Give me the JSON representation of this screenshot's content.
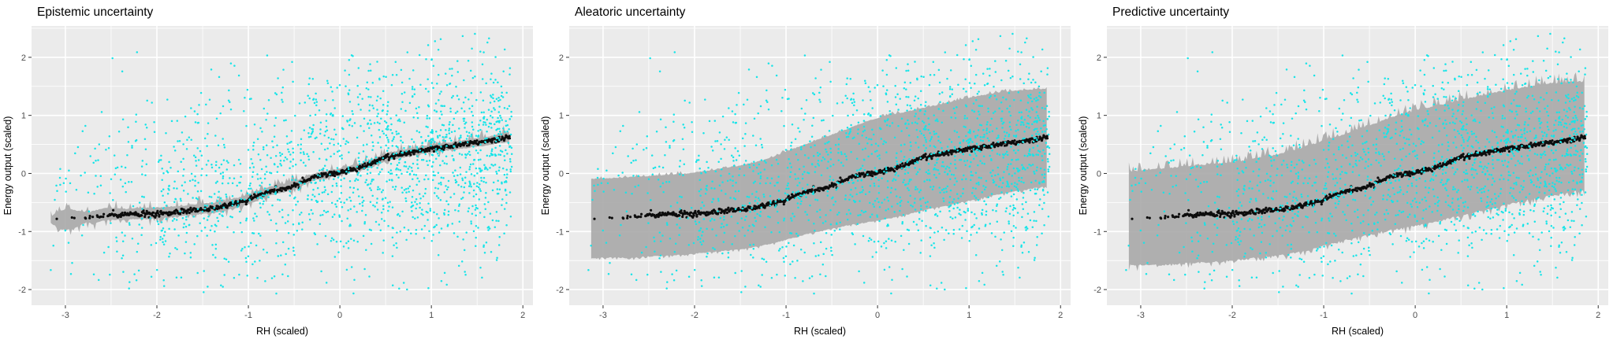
{
  "figure": {
    "background": "#FFFFFF",
    "description": "Three ggplot-style panels comparing uncertainty decompositions of a regression model on power-plant data"
  },
  "chart_data": {
    "type": "scatter",
    "xlabel": "RH (scaled)",
    "ylabel": "Energy output (scaled)",
    "xlim": [
      -3.37,
      2.11
    ],
    "ylim": [
      -2.27,
      2.54
    ],
    "x_ticks": [
      -3,
      -2,
      -1,
      0,
      1,
      2
    ],
    "y_ticks": [
      2,
      1,
      0,
      -1,
      -2
    ],
    "x_minor_ticks": [
      -2.5,
      -1.5,
      -0.5,
      0.5,
      1.5
    ],
    "y_minor_ticks": [
      -1.5,
      -0.5,
      0.5,
      1.5,
      2.5
    ],
    "panel_bg": "#EBEBEB",
    "grid_color": "#FFFFFF",
    "tick_mark_color": "#333333",
    "tick_label_color": "#4D4D4D",
    "legend": "none",
    "scatter": {
      "name": "observations",
      "color": "#17E4E8",
      "point_r": 1.25,
      "n": 1700,
      "seed": 11,
      "x_power": 0.55,
      "x_range": [
        -3.3,
        1.88
      ],
      "y_center_scale": 0.58,
      "y_offset": 0.03,
      "y_sigma": 0.86,
      "y_clip": [
        -2.1,
        2.45
      ]
    },
    "mean_curve": {
      "name": "mean prediction",
      "color": "#0D0D0D",
      "point_r": 1.6,
      "seed": 5,
      "jitter": 0.022,
      "band_start": -2.54,
      "band_end": 1.86,
      "band_step": 0.0072,
      "left_clusters": [
        [
          -3.1,
          1
        ],
        [
          -2.92,
          1
        ],
        [
          -2.89,
          1
        ],
        [
          -2.79,
          2
        ],
        [
          -2.74,
          2
        ],
        [
          -2.7,
          1
        ],
        [
          -2.66,
          2
        ],
        [
          -2.62,
          3
        ],
        [
          -2.58,
          2
        ]
      ],
      "points": [
        [
          -3.12,
          -0.8
        ],
        [
          -2.95,
          -0.76
        ],
        [
          -2.85,
          -0.78
        ],
        [
          -2.72,
          -0.74
        ],
        [
          -2.6,
          -0.73
        ],
        [
          -2.5,
          -0.71
        ],
        [
          -2.4,
          -0.72
        ],
        [
          -2.3,
          -0.7
        ],
        [
          -2.2,
          -0.71
        ],
        [
          -2.1,
          -0.69
        ],
        [
          -2.0,
          -0.7
        ],
        [
          -1.9,
          -0.68
        ],
        [
          -1.8,
          -0.67
        ],
        [
          -1.7,
          -0.65
        ],
        [
          -1.6,
          -0.63
        ],
        [
          -1.5,
          -0.62
        ],
        [
          -1.4,
          -0.6
        ],
        [
          -1.3,
          -0.57
        ],
        [
          -1.2,
          -0.54
        ],
        [
          -1.1,
          -0.5
        ],
        [
          -1.0,
          -0.45
        ],
        [
          -0.9,
          -0.4
        ],
        [
          -0.85,
          -0.36
        ],
        [
          -0.75,
          -0.3
        ],
        [
          -0.65,
          -0.27
        ],
        [
          -0.55,
          -0.24
        ],
        [
          -0.45,
          -0.18
        ],
        [
          -0.35,
          -0.1
        ],
        [
          -0.3,
          -0.06
        ],
        [
          -0.2,
          -0.03
        ],
        [
          -0.1,
          -0.01
        ],
        [
          0.0,
          0.02
        ],
        [
          0.1,
          0.06
        ],
        [
          0.2,
          0.1
        ],
        [
          0.3,
          0.14
        ],
        [
          0.4,
          0.22
        ],
        [
          0.5,
          0.28
        ],
        [
          0.6,
          0.31
        ],
        [
          0.7,
          0.34
        ],
        [
          0.8,
          0.37
        ],
        [
          0.9,
          0.4
        ],
        [
          1.0,
          0.43
        ],
        [
          1.1,
          0.45
        ],
        [
          1.2,
          0.47
        ],
        [
          1.3,
          0.49
        ],
        [
          1.4,
          0.51
        ],
        [
          1.5,
          0.53
        ],
        [
          1.6,
          0.55
        ],
        [
          1.7,
          0.58
        ],
        [
          1.8,
          0.61
        ],
        [
          1.86,
          0.63
        ]
      ]
    },
    "ribbon_color": "#A9A9A9",
    "ribbon_opacity": 0.9,
    "panels": [
      {
        "title": "Epistemic uncertainty",
        "ribbon": {
          "seed": 101,
          "edge_noise": {
            "prob": 0.28,
            "base": 0.018,
            "spike_up": 0.15,
            "spike_down": 0.13
          },
          "points": [
            [
              -3.16,
              -0.84,
              -0.76
            ],
            [
              -3.08,
              -0.93,
              -0.66
            ],
            [
              -3.0,
              -0.97,
              -0.62
            ],
            [
              -2.92,
              -0.94,
              -0.63
            ],
            [
              -2.84,
              -0.89,
              -0.66
            ],
            [
              -2.76,
              -0.82,
              -0.7
            ],
            [
              -2.7,
              -0.88,
              -0.65
            ],
            [
              -2.62,
              -0.81,
              -0.63
            ],
            [
              -2.55,
              -0.8,
              -0.6
            ],
            [
              -2.45,
              -0.79,
              -0.61
            ],
            [
              -2.35,
              -0.8,
              -0.62
            ],
            [
              -2.25,
              -0.78,
              -0.61
            ],
            [
              -2.15,
              -0.78,
              -0.6
            ],
            [
              -2.05,
              -0.77,
              -0.6
            ],
            [
              -1.95,
              -0.76,
              -0.59
            ],
            [
              -1.85,
              -0.75,
              -0.58
            ],
            [
              -1.75,
              -0.73,
              -0.57
            ],
            [
              -1.65,
              -0.71,
              -0.55
            ],
            [
              -1.55,
              -0.7,
              -0.54
            ],
            [
              -1.45,
              -0.68,
              -0.52
            ],
            [
              -1.35,
              -0.66,
              -0.5
            ],
            [
              -1.25,
              -0.62,
              -0.47
            ],
            [
              -1.15,
              -0.59,
              -0.44
            ],
            [
              -1.05,
              -0.55,
              -0.4
            ],
            [
              -0.95,
              -0.49,
              -0.34
            ],
            [
              -0.85,
              -0.42,
              -0.28
            ],
            [
              -0.75,
              -0.36,
              -0.23
            ],
            [
              -0.65,
              -0.33,
              -0.2
            ],
            [
              -0.55,
              -0.29,
              -0.17
            ],
            [
              -0.45,
              -0.23,
              -0.11
            ],
            [
              -0.35,
              -0.15,
              -0.04
            ],
            [
              -0.25,
              -0.1,
              0.0
            ],
            [
              -0.15,
              -0.07,
              0.03
            ],
            [
              -0.05,
              -0.04,
              0.06
            ],
            [
              0.05,
              0.0,
              0.1
            ],
            [
              0.15,
              0.04,
              0.14
            ],
            [
              0.25,
              0.07,
              0.17
            ],
            [
              0.35,
              0.12,
              0.23
            ],
            [
              0.45,
              0.19,
              0.31
            ],
            [
              0.55,
              0.24,
              0.36
            ],
            [
              0.65,
              0.27,
              0.38
            ],
            [
              0.75,
              0.3,
              0.41
            ],
            [
              0.85,
              0.33,
              0.44
            ],
            [
              0.95,
              0.36,
              0.47
            ],
            [
              1.05,
              0.38,
              0.5
            ],
            [
              1.15,
              0.4,
              0.52
            ],
            [
              1.25,
              0.42,
              0.54
            ],
            [
              1.35,
              0.44,
              0.56
            ],
            [
              1.45,
              0.46,
              0.58
            ],
            [
              1.55,
              0.48,
              0.61
            ],
            [
              1.65,
              0.5,
              0.63
            ],
            [
              1.75,
              0.53,
              0.67
            ],
            [
              1.86,
              0.55,
              0.71
            ]
          ]
        }
      },
      {
        "title": "Aleatoric uncertainty",
        "ribbon": {
          "seed": 102,
          "edge_noise": {
            "prob": 0.3,
            "base": 0.015,
            "spike_up": 0.06,
            "spike_down": 0.05
          },
          "points": [
            [
              -3.13,
              -1.45,
              -0.1
            ],
            [
              -2.9,
              -1.44,
              -0.09
            ],
            [
              -2.7,
              -1.45,
              -0.07
            ],
            [
              -2.5,
              -1.42,
              -0.05
            ],
            [
              -2.3,
              -1.41,
              -0.03
            ],
            [
              -2.1,
              -1.39,
              -0.01
            ],
            [
              -1.9,
              -1.36,
              0.03
            ],
            [
              -1.7,
              -1.33,
              0.08
            ],
            [
              -1.5,
              -1.3,
              0.13
            ],
            [
              -1.3,
              -1.25,
              0.2
            ],
            [
              -1.1,
              -1.18,
              0.3
            ],
            [
              -0.9,
              -1.09,
              0.43
            ],
            [
              -0.7,
              -1.01,
              0.55
            ],
            [
              -0.5,
              -0.94,
              0.66
            ],
            [
              -0.3,
              -0.88,
              0.78
            ],
            [
              -0.1,
              -0.83,
              0.9
            ],
            [
              0.1,
              -0.78,
              0.99
            ],
            [
              0.3,
              -0.71,
              1.05
            ],
            [
              0.5,
              -0.63,
              1.12
            ],
            [
              0.7,
              -0.56,
              1.19
            ],
            [
              0.9,
              -0.5,
              1.26
            ],
            [
              1.1,
              -0.43,
              1.33
            ],
            [
              1.3,
              -0.36,
              1.38
            ],
            [
              1.5,
              -0.3,
              1.42
            ],
            [
              1.7,
              -0.25,
              1.44
            ],
            [
              1.86,
              -0.21,
              1.45
            ]
          ]
        }
      },
      {
        "title": "Predictive uncertainty",
        "ribbon": {
          "seed": 103,
          "edge_noise": {
            "prob": 0.38,
            "base": 0.03,
            "spike_up": 0.18,
            "spike_down": 0.12
          },
          "points": [
            [
              -3.13,
              -1.57,
              0.02
            ],
            [
              -2.9,
              -1.56,
              0.05
            ],
            [
              -2.7,
              -1.56,
              0.08
            ],
            [
              -2.5,
              -1.53,
              0.11
            ],
            [
              -2.3,
              -1.52,
              0.14
            ],
            [
              -2.1,
              -1.5,
              0.17
            ],
            [
              -1.9,
              -1.47,
              0.21
            ],
            [
              -1.7,
              -1.43,
              0.26
            ],
            [
              -1.5,
              -1.4,
              0.32
            ],
            [
              -1.3,
              -1.35,
              0.4
            ],
            [
              -1.1,
              -1.28,
              0.5
            ],
            [
              -0.9,
              -1.19,
              0.6
            ],
            [
              -0.7,
              -1.11,
              0.71
            ],
            [
              -0.5,
              -1.04,
              0.82
            ],
            [
              -0.3,
              -0.97,
              0.93
            ],
            [
              -0.1,
              -0.92,
              1.03
            ],
            [
              0.1,
              -0.86,
              1.11
            ],
            [
              0.3,
              -0.79,
              1.18
            ],
            [
              0.5,
              -0.71,
              1.25
            ],
            [
              0.7,
              -0.64,
              1.32
            ],
            [
              0.9,
              -0.57,
              1.39
            ],
            [
              1.1,
              -0.49,
              1.45
            ],
            [
              1.3,
              -0.42,
              1.5
            ],
            [
              1.5,
              -0.36,
              1.54
            ],
            [
              1.7,
              -0.31,
              1.56
            ],
            [
              1.86,
              -0.27,
              1.57
            ]
          ]
        }
      }
    ]
  }
}
